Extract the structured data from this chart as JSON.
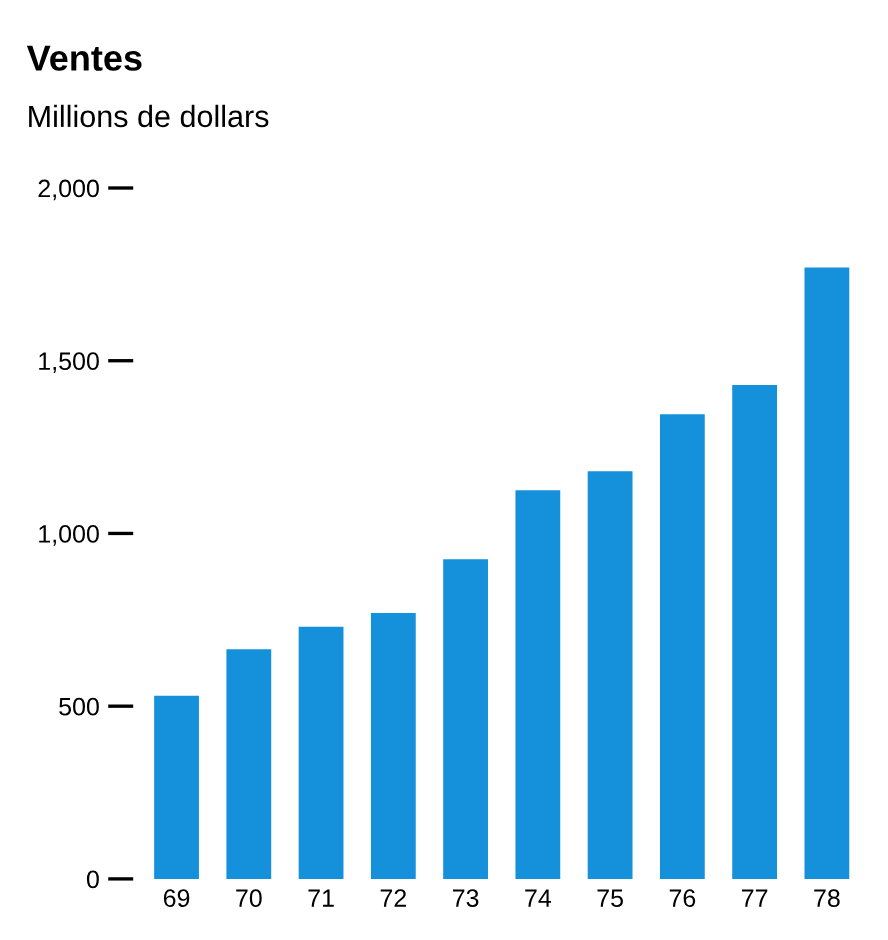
{
  "chart_data": {
    "type": "bar",
    "title": "Ventes",
    "ylabel": "Millions de dollars",
    "categories": [
      "69",
      "70",
      "71",
      "72",
      "73",
      "74",
      "75",
      "76",
      "77",
      "78"
    ],
    "values": [
      530,
      665,
      730,
      770,
      925,
      1125,
      1180,
      1345,
      1430,
      1770
    ],
    "color": "#1591dc",
    "ylim": [
      0,
      2000
    ],
    "yticks": [
      {
        "value": 0,
        "label": "0"
      },
      {
        "value": 500,
        "label": "500"
      },
      {
        "value": 1000,
        "label": "1,000"
      },
      {
        "value": 1500,
        "label": "1,500"
      },
      {
        "value": 2000,
        "label": "2,000"
      }
    ],
    "grid": false
  }
}
